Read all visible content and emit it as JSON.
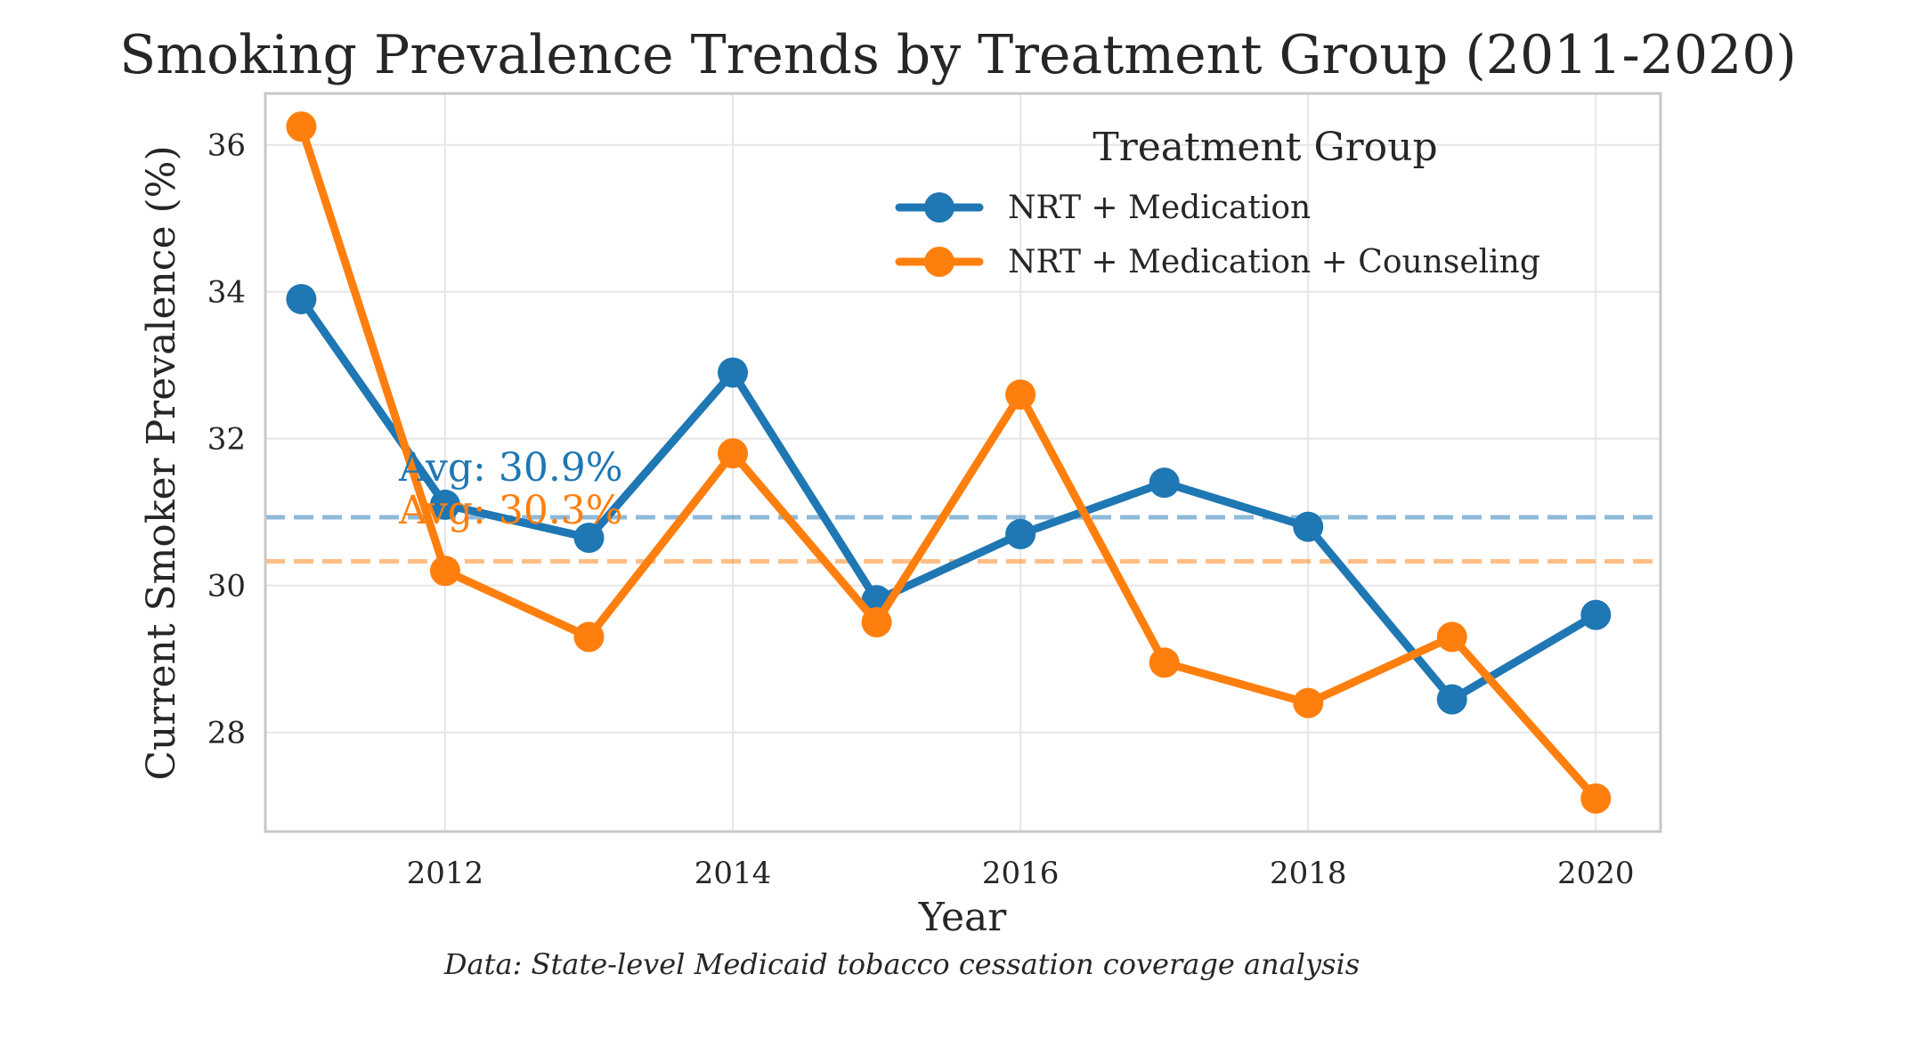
{
  "chart_data": {
    "type": "line",
    "title": "Smoking Prevalence Trends by Treatment Group (2011-2020)",
    "xlabel": "Year",
    "ylabel": "Current Smoker Prevalence (%)",
    "x": [
      2011,
      2012,
      2013,
      2014,
      2015,
      2016,
      2017,
      2018,
      2019,
      2020
    ],
    "xlim": [
      2010.75,
      2020.45
    ],
    "ylim": [
      26.65,
      36.7
    ],
    "xticks": [
      2012,
      2014,
      2016,
      2018,
      2020
    ],
    "yticks": [
      28,
      30,
      32,
      34,
      36
    ],
    "grid": true,
    "legend_title": "Treatment Group",
    "legend_position": "top-right",
    "series": [
      {
        "name": "NRT + Medication",
        "color": "#1f77b4",
        "values": [
          33.9,
          31.1,
          30.65,
          32.9,
          29.8,
          30.7,
          31.4,
          30.8,
          28.45,
          29.6
        ],
        "average": 30.93,
        "average_label": "Avg: 30.9%"
      },
      {
        "name": "NRT + Medication + Counseling",
        "color": "#ff7f0e",
        "values": [
          36.25,
          30.2,
          29.3,
          31.8,
          29.5,
          32.6,
          28.95,
          28.4,
          29.3,
          27.1
        ],
        "average": 30.33,
        "average_label": "Avg: 30.3%"
      }
    ]
  },
  "caption": "Data: State-level Medicaid tobacco cessation coverage analysis"
}
